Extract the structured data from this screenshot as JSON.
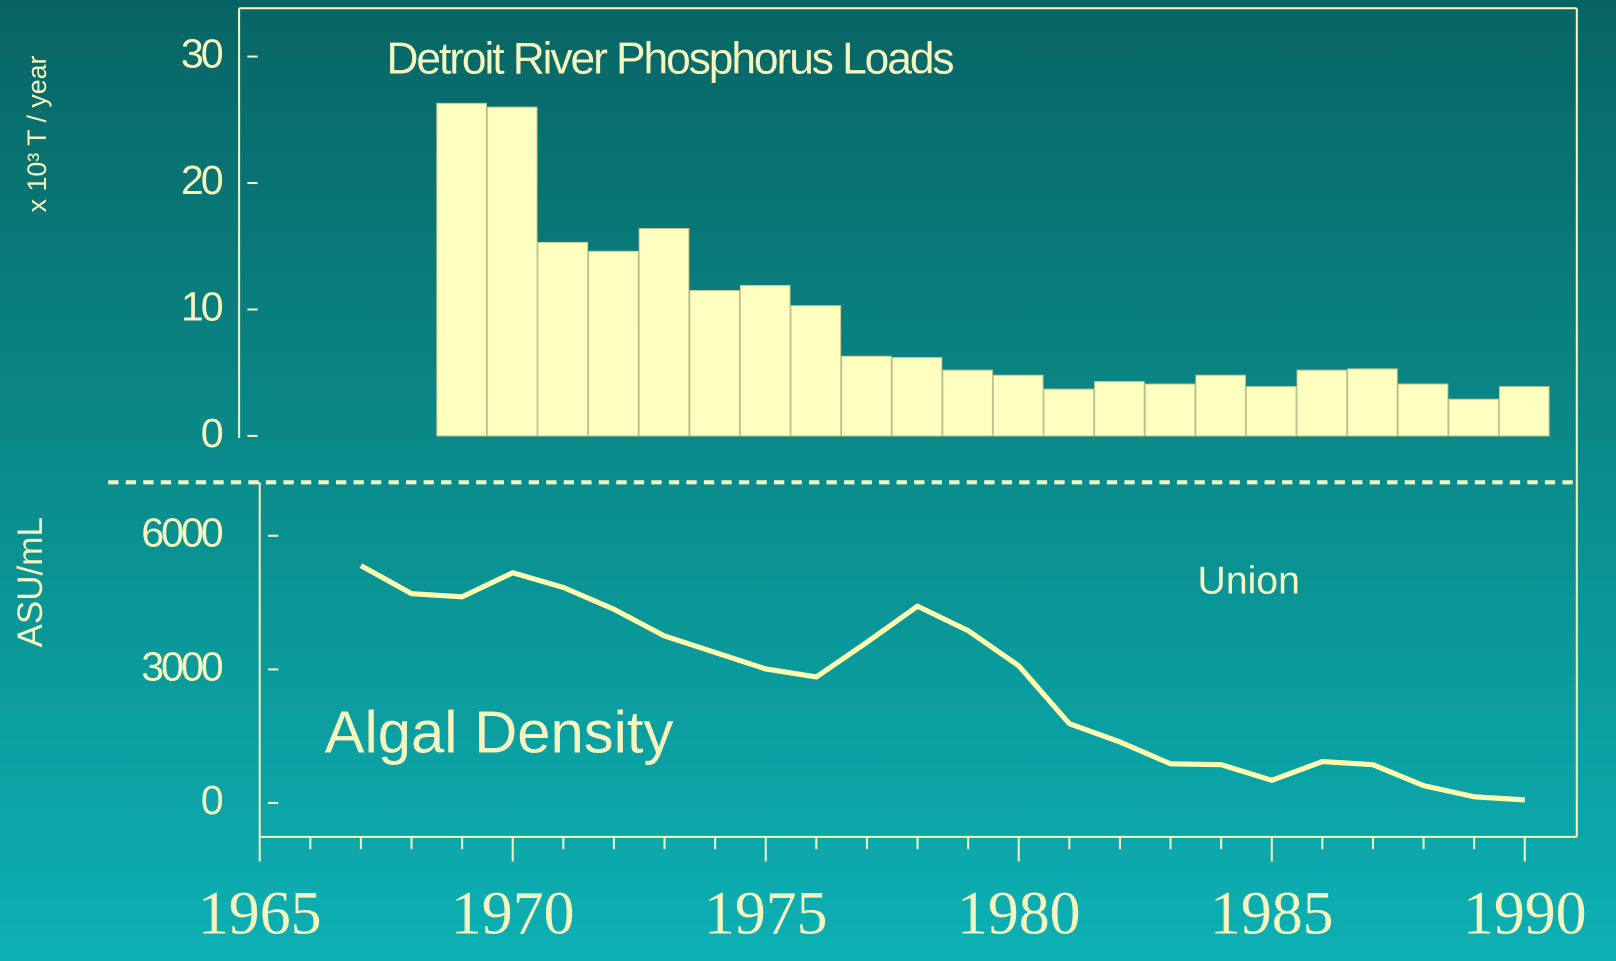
{
  "chart_data": [
    {
      "type": "bar",
      "title": "Detroit River Phosphorus Loads",
      "y_label": "x 10³ T / year",
      "x": [
        1969,
        1970,
        1971,
        1972,
        1973,
        1974,
        1975,
        1976,
        1977,
        1978,
        1979,
        1980,
        1981,
        1982,
        1983,
        1984,
        1985,
        1986,
        1987,
        1988,
        1989,
        1990
      ],
      "values": [
        26.3,
        26.0,
        15.3,
        14.6,
        16.4,
        11.5,
        11.9,
        10.3,
        6.3,
        6.2,
        5.2,
        4.8,
        3.7,
        4.3,
        4.1,
        4.8,
        3.9,
        5.2,
        5.3,
        4.1,
        2.9,
        3.9
      ],
      "color": "#ffffc0",
      "xlim": [
        1965,
        1991
      ],
      "ylim": [
        -3,
        33.7
      ],
      "yticks": [
        0,
        10,
        20,
        30
      ]
    },
    {
      "type": "line",
      "title": "Algal Density",
      "y_label": "ASU/mL",
      "annotation": "Union",
      "x": [
        1967,
        1968,
        1969,
        1970,
        1971,
        1972,
        1973,
        1974,
        1975,
        1976,
        1977,
        1978,
        1979,
        1980,
        1981,
        1982,
        1983,
        1984,
        1985,
        1986,
        1987,
        1988,
        1989,
        1990
      ],
      "values": [
        5330,
        4700,
        4630,
        5170,
        4840,
        4350,
        3750,
        3380,
        3010,
        2830,
        3610,
        4420,
        3870,
        3080,
        1780,
        1370,
        880,
        860,
        510,
        930,
        860,
        390,
        140,
        70
      ],
      "color": "#ffffb0",
      "xlim": [
        1965,
        1991
      ],
      "ylim": [
        -760,
        7200
      ],
      "yticks": [
        0,
        3000,
        6000
      ],
      "xticks": [
        1965,
        1970,
        1975,
        1980,
        1985,
        1990
      ],
      "xminorticks": [
        1966,
        1967,
        1968,
        1969,
        1971,
        1972,
        1973,
        1974,
        1976,
        1977,
        1978,
        1979,
        1981,
        1982,
        1983,
        1984,
        1986,
        1987,
        1988,
        1989
      ]
    }
  ]
}
